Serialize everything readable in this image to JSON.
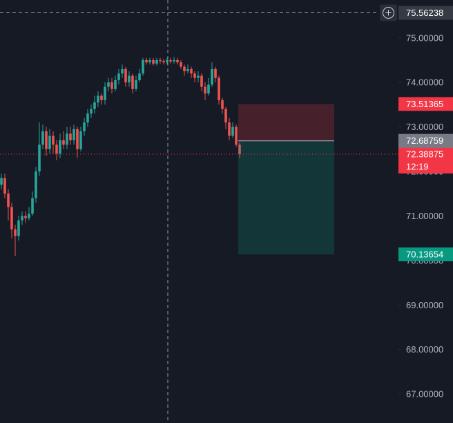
{
  "chart_data": {
    "type": "candlestick",
    "ylim": [
      66.35,
      75.85
    ],
    "yticks": [
      {
        "value": 67,
        "label": "67.00000"
      },
      {
        "value": 68,
        "label": "68.00000"
      },
      {
        "value": 69,
        "label": "69.00000"
      },
      {
        "value": 70,
        "label": "70.00000"
      },
      {
        "value": 71,
        "label": "71.00000"
      },
      {
        "value": 72,
        "label": "72.00000"
      },
      {
        "value": 73,
        "label": "73.00000"
      },
      {
        "value": 74,
        "label": "74.00000"
      },
      {
        "value": 75,
        "label": "75.00000"
      }
    ],
    "up_color": "#26a69a",
    "down_color": "#ef5350",
    "open": [
      71.7,
      71.85,
      71.5,
      71.2,
      70.7,
      70.55,
      70.9,
      71.0,
      70.95,
      71.05,
      71.4,
      72.0,
      72.6,
      72.9,
      72.5,
      72.8,
      72.6,
      72.4,
      72.7,
      72.6,
      72.85,
      72.7,
      72.95,
      72.5,
      72.9,
      73.1,
      73.3,
      73.4,
      73.55,
      73.7,
      73.6,
      73.9,
      74.0,
      73.85,
      74.05,
      74.2,
      74.3,
      74.0,
      74.15,
      73.85,
      74.05,
      74.2,
      74.5,
      74.45,
      74.5,
      74.42,
      74.5,
      74.48,
      74.45,
      74.5,
      74.47,
      74.5,
      74.45,
      74.35,
      74.25,
      74.3,
      74.2,
      74.1,
      74.15,
      73.9,
      73.75,
      73.95,
      74.3,
      74.1,
      73.6,
      73.4,
      73.1,
      72.8,
      73.0,
      72.6
    ],
    "high": [
      71.95,
      71.95,
      71.6,
      71.3,
      70.8,
      71.0,
      71.1,
      71.1,
      71.2,
      71.55,
      72.1,
      73.1,
      73.05,
      73.0,
      72.95,
      72.9,
      72.7,
      72.85,
      72.9,
      73.0,
      73.0,
      73.05,
      73.0,
      73.0,
      73.2,
      73.4,
      73.5,
      73.7,
      73.8,
      73.75,
      74.0,
      74.1,
      74.1,
      74.15,
      74.3,
      74.4,
      74.35,
      74.25,
      74.2,
      74.15,
      74.3,
      74.55,
      74.55,
      74.55,
      74.55,
      74.55,
      74.55,
      74.52,
      74.55,
      74.55,
      74.57,
      74.55,
      74.5,
      74.4,
      74.4,
      74.35,
      74.25,
      74.25,
      74.2,
      74.0,
      74.1,
      74.45,
      74.35,
      74.15,
      73.65,
      73.45,
      73.2,
      73.1,
      73.05,
      72.65
    ],
    "low": [
      71.6,
      71.4,
      70.9,
      70.5,
      70.1,
      70.45,
      70.8,
      70.85,
      70.9,
      71.0,
      71.3,
      71.9,
      72.5,
      72.35,
      72.4,
      72.4,
      72.25,
      72.3,
      72.5,
      72.5,
      72.6,
      72.6,
      72.3,
      72.45,
      72.8,
      73.0,
      73.2,
      73.3,
      73.45,
      73.5,
      73.5,
      73.8,
      73.75,
      73.8,
      73.95,
      74.1,
      73.9,
      73.9,
      73.75,
      73.8,
      74.0,
      74.15,
      74.4,
      74.4,
      74.38,
      74.38,
      74.42,
      74.4,
      74.4,
      74.42,
      74.42,
      74.4,
      74.3,
      74.15,
      74.2,
      74.1,
      74.0,
      74.0,
      73.8,
      73.6,
      73.7,
      73.9,
      74.0,
      73.5,
      73.3,
      72.95,
      72.7,
      72.75,
      72.55,
      72.3
    ],
    "close": [
      71.85,
      71.5,
      71.2,
      70.7,
      70.55,
      70.9,
      71.0,
      70.95,
      71.05,
      71.4,
      72.0,
      72.6,
      72.9,
      72.5,
      72.8,
      72.6,
      72.4,
      72.7,
      72.6,
      72.85,
      72.7,
      72.95,
      72.5,
      72.9,
      73.1,
      73.3,
      73.4,
      73.55,
      73.7,
      73.6,
      73.9,
      74.0,
      73.85,
      74.05,
      74.2,
      74.3,
      74.0,
      74.15,
      73.85,
      74.05,
      74.2,
      74.5,
      74.45,
      74.5,
      74.42,
      74.5,
      74.48,
      74.45,
      74.5,
      74.47,
      74.5,
      74.45,
      74.35,
      74.25,
      74.3,
      74.2,
      74.1,
      74.15,
      73.9,
      73.75,
      73.95,
      74.3,
      74.1,
      73.6,
      73.4,
      73.1,
      72.8,
      73.0,
      72.6,
      72.39
    ],
    "crosshair_price": 75.56238,
    "last_price": 72.38875,
    "countdown": "12:19",
    "position": {
      "stop": 73.51365,
      "entry": 72.68759,
      "target": 70.13654
    }
  }
}
